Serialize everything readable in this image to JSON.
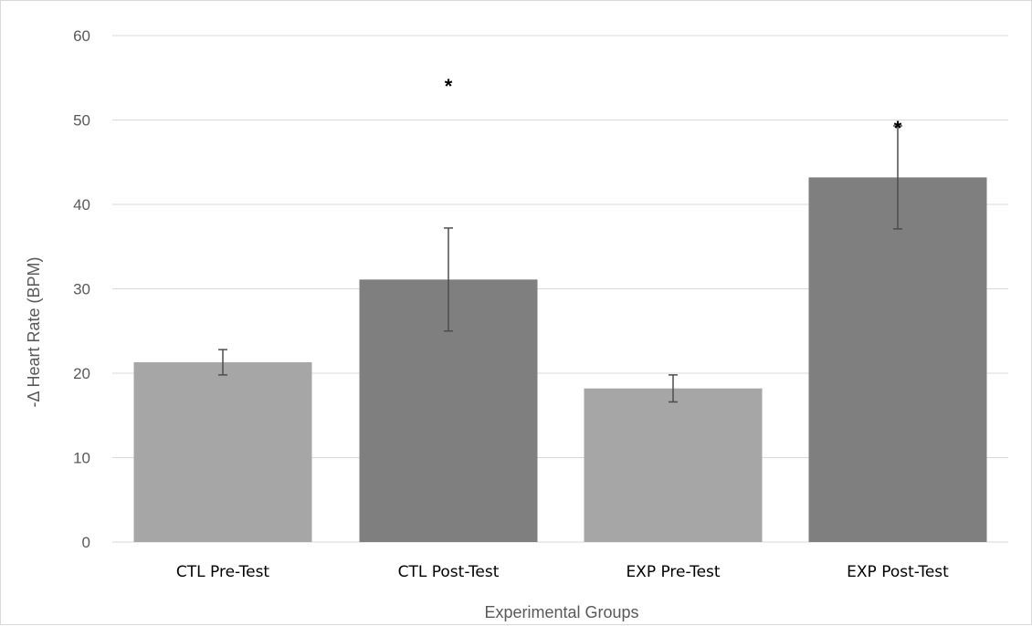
{
  "chart_data": {
    "type": "bar",
    "title": "",
    "xlabel": "Experimental Groups",
    "ylabel": "-Δ Heart Rate (BPM)",
    "ylim": [
      0,
      60
    ],
    "yticks": [
      0,
      10,
      20,
      30,
      40,
      50,
      60
    ],
    "grid": true,
    "legend": "none",
    "categories": [
      "CTL Pre-Test",
      "CTL Post-Test",
      "EXP Pre-Test",
      "EXP Post-Test"
    ],
    "values": [
      21.3,
      31.1,
      18.2,
      43.2
    ],
    "error": [
      1.5,
      6.1,
      1.6,
      6.1
    ],
    "significance": [
      "",
      "*",
      "",
      "*"
    ],
    "significance_y": [
      null,
      54.5,
      null,
      49.5
    ],
    "colors": [
      "#a6a6a6",
      "#7f7f7f",
      "#a6a6a6",
      "#7f7f7f"
    ],
    "gridline_color": "#d9d9d9",
    "errorbar_color": "#4d4d4d"
  }
}
